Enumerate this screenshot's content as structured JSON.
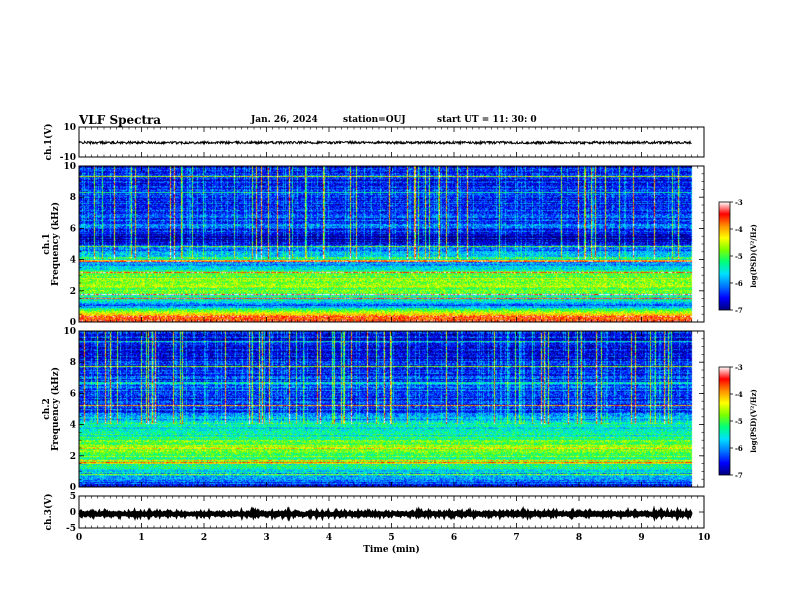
{
  "header": {
    "title": "VLF Spectra",
    "date": "Jan. 26, 2024",
    "station": "station=OUJ",
    "start": "start UT =  11: 30: 0"
  },
  "colors": {
    "colormap": [
      "#00007a",
      "#0000ff",
      "#0078ff",
      "#00e0ff",
      "#00ff7a",
      "#7aff00",
      "#ffff00",
      "#ff9000",
      "#ff0000",
      "#ffffff"
    ],
    "axis": "#000000"
  },
  "chart_data": [
    {
      "type": "line",
      "name": "ch1-waveform",
      "ylabel": "ch.1(V)",
      "ylim": [
        -10,
        10
      ],
      "yticks": [
        "10",
        "-10"
      ],
      "xlim": [
        0,
        10
      ],
      "x": [
        0,
        1,
        2,
        3,
        4,
        5,
        6,
        7,
        8,
        9,
        9.8
      ],
      "y": [
        -0.4,
        -0.4,
        -0.4,
        -0.4,
        -0.4,
        -0.4,
        -0.4,
        -0.4,
        -0.4,
        -0.4,
        -0.4
      ],
      "envelope": 0.8
    },
    {
      "type": "heatmap",
      "name": "ch1-spectrogram",
      "ylabel": "ch.1 Frequency (kHz)",
      "ylim": [
        0,
        10
      ],
      "yticks": [
        "0",
        "2",
        "4",
        "6",
        "8",
        "10"
      ],
      "xlim": [
        0,
        10
      ],
      "data_xmax": 9.8,
      "colorbar": {
        "label": "log(PSD)(V²/Hz)",
        "range": [
          -7,
          -3
        ],
        "ticks": [
          "-3",
          "-4",
          "-5",
          "-6",
          "-7"
        ]
      },
      "profile": [
        {
          "f": 0.0,
          "v": -3.6
        },
        {
          "f": 0.3,
          "v": -3.4
        },
        {
          "f": 0.6,
          "v": -4.5
        },
        {
          "f": 1.0,
          "v": -6.2
        },
        {
          "f": 1.4,
          "v": -5.5
        },
        {
          "f": 1.8,
          "v": -5.0
        },
        {
          "f": 2.2,
          "v": -4.7
        },
        {
          "f": 2.6,
          "v": -4.6
        },
        {
          "f": 3.0,
          "v": -4.9
        },
        {
          "f": 3.4,
          "v": -5.4
        },
        {
          "f": 3.8,
          "v": -6.0
        },
        {
          "f": 4.1,
          "v": -5.3
        },
        {
          "f": 4.5,
          "v": -6.1
        },
        {
          "f": 5.0,
          "v": -6.5
        },
        {
          "f": 5.2,
          "v": -7.0
        },
        {
          "f": 6.0,
          "v": -6.3
        },
        {
          "f": 8.0,
          "v": -6.5
        },
        {
          "f": 10.0,
          "v": -6.6
        }
      ]
    },
    {
      "type": "heatmap",
      "name": "ch2-spectrogram",
      "ylabel": "ch.2 Frequency (kHz)",
      "ylim": [
        0,
        10
      ],
      "yticks": [
        "0",
        "2",
        "4",
        "6",
        "8",
        "10"
      ],
      "xlim": [
        0,
        10
      ],
      "data_xmax": 9.8,
      "colorbar": {
        "label": "log(PSD)(V²/Hz)",
        "range": [
          -7,
          -3
        ],
        "ticks": [
          "-3",
          "-4",
          "-5",
          "-6",
          "-7"
        ]
      },
      "profile": [
        {
          "f": 0.0,
          "v": -6.5
        },
        {
          "f": 0.5,
          "v": -6.0
        },
        {
          "f": 1.0,
          "v": -5.6
        },
        {
          "f": 1.5,
          "v": -5.2
        },
        {
          "f": 2.0,
          "v": -4.9
        },
        {
          "f": 2.5,
          "v": -4.5
        },
        {
          "f": 3.0,
          "v": -5.0
        },
        {
          "f": 3.5,
          "v": -5.6
        },
        {
          "f": 4.0,
          "v": -5.3
        },
        {
          "f": 4.5,
          "v": -6.2
        },
        {
          "f": 5.0,
          "v": -6.4
        },
        {
          "f": 6.0,
          "v": -6.3
        },
        {
          "f": 8.0,
          "v": -6.5
        },
        {
          "f": 10.0,
          "v": -6.6
        }
      ]
    },
    {
      "type": "line",
      "name": "ch3-waveform",
      "ylabel": "ch.3(V)",
      "ylim": [
        -5,
        5
      ],
      "yticks": [
        "5",
        "0",
        "-5"
      ],
      "xlim": [
        0,
        10
      ],
      "x": [
        0,
        9.8
      ],
      "y": [
        -0.6,
        -0.6
      ],
      "envelope": 0.3,
      "xlabel": "Time (min)",
      "xticks": [
        "0",
        "1",
        "2",
        "3",
        "4",
        "5",
        "6",
        "7",
        "8",
        "9",
        "10"
      ]
    }
  ]
}
